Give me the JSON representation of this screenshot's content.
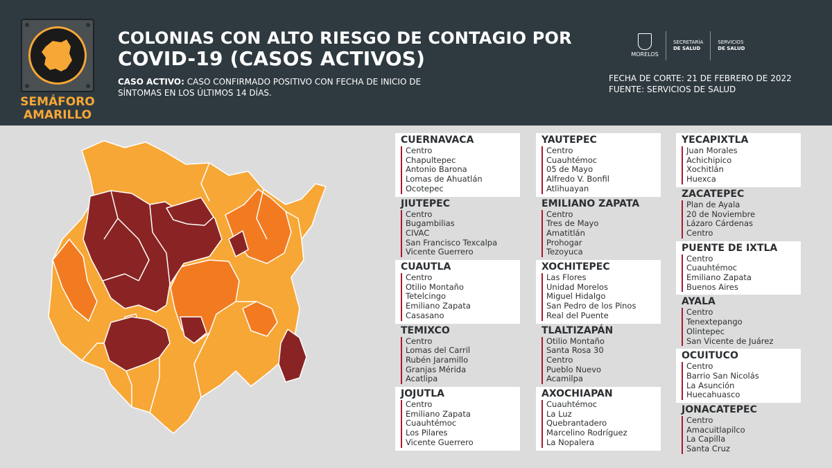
{
  "header": {
    "badge": "SEMÁFORO AMARILLO",
    "badge_line1": "SEMÁFORO",
    "badge_line2": "AMARILLO",
    "title_line1": "COLONIAS CON ALTO RIESGO DE CONTAGIO POR",
    "title_line2": "COVID-19 (CASOS ACTIVOS)",
    "definition_label": "CASO ACTIVO:",
    "definition_text": " CASO CONFIRMADO POSITIVO CON FECHA DE INICIO DE SÍNTOMAS EN LOS ÚLTIMOS 14 DÍAS.",
    "gov_name": "MORELOS",
    "gov_secretaria_1": "SECRETARÍA",
    "gov_secretaria_2": "DE SALUD",
    "gov_servicios_1": "SERVICIOS",
    "gov_servicios_2": "DE SALUD",
    "fecha_corte": "FECHA DE CORTE: 21 DE FEBRERO DE 2022",
    "fuente": "FUENTE: SERVICIOS DE SALUD"
  },
  "colors": {
    "header_bg": "#2f3a40",
    "high_risk": "#8a2424",
    "medium_risk": "#f27b21",
    "low_risk": "#f7a736",
    "accent": "#a6192e"
  },
  "columns": [
    [
      {
        "name": "CUERNAVACA",
        "items": [
          "Centro",
          "Chapultepec",
          "Antonio Barona",
          "Lomas de Ahuatlán",
          "Ocotepec"
        ]
      },
      {
        "name": "JIUTEPEC",
        "items": [
          "Centro",
          "Bugambilias",
          "CIVAC",
          "San Francisco Texcalpa",
          "Vicente Guerrero"
        ]
      },
      {
        "name": "CUAUTLA",
        "items": [
          "Centro",
          "Otilio Montaño",
          "Tetelcingo",
          "Emiliano Zapata",
          "Casasano"
        ]
      },
      {
        "name": "TEMIXCO",
        "items": [
          "Centro",
          "Lomas del Carril",
          "Rubén Jaramillo",
          "Granjas Mérida",
          "Acatlipa"
        ]
      },
      {
        "name": "JOJUTLA",
        "items": [
          "Centro",
          "Emiliano Zapata",
          "Cuauhtémoc",
          "Los Pilares",
          "Vicente Guerrero"
        ]
      }
    ],
    [
      {
        "name": "YAUTEPEC",
        "items": [
          "Centro",
          "Cuauhtémoc",
          "05 de Mayo",
          "Alfredo V. Bonfil",
          "Atlihuayan"
        ]
      },
      {
        "name": "EMILIANO ZAPATA",
        "items": [
          "Centro",
          "Tres de Mayo",
          "Amatitlán",
          "Prohogar",
          "Tezoyuca"
        ]
      },
      {
        "name": "XOCHITEPEC",
        "items": [
          "Las Flores",
          "Unidad Morelos",
          "Miguel Hidalgo",
          "San Pedro de los Pinos",
          "Real del Puente"
        ]
      },
      {
        "name": "TLALTIZAPÁN",
        "items": [
          "Otilio Montaño",
          "Santa Rosa 30",
          "Centro",
          "Pueblo Nuevo",
          "Acamilpa"
        ]
      },
      {
        "name": "AXOCHIAPAN",
        "items": [
          "Cuauhtémoc",
          "La Luz",
          "Quebrantadero",
          "Marcelino Rodríguez",
          "La Nopalera"
        ]
      }
    ],
    [
      {
        "name": "YECAPIXTLA",
        "items": [
          "Juan Morales",
          "Achichipico",
          "Xochitlán",
          "Huexca"
        ]
      },
      {
        "name": "ZACATEPEC",
        "items": [
          "Plan de Ayala",
          "20 de Noviembre",
          "Lázaro Cárdenas",
          "Centro"
        ]
      },
      {
        "name": "PUENTE DE IXTLA",
        "items": [
          "Centro",
          "Cuauhtémoc",
          "Emiliano Zapata",
          "Buenos Aires"
        ]
      },
      {
        "name": "AYALA",
        "items": [
          "Centro",
          "Tenextepango",
          "Olintepec",
          "San Vicente de Juárez"
        ]
      },
      {
        "name": "OCUITUCO",
        "items": [
          "Centro",
          "Barrio San Nicolás",
          "La Asunción",
          "Huecahuasco"
        ]
      },
      {
        "name": "JONACATEPEC",
        "items": [
          "Centro",
          "Amacuitlapilco",
          "La Capilla",
          "Santa Cruz"
        ]
      }
    ]
  ]
}
